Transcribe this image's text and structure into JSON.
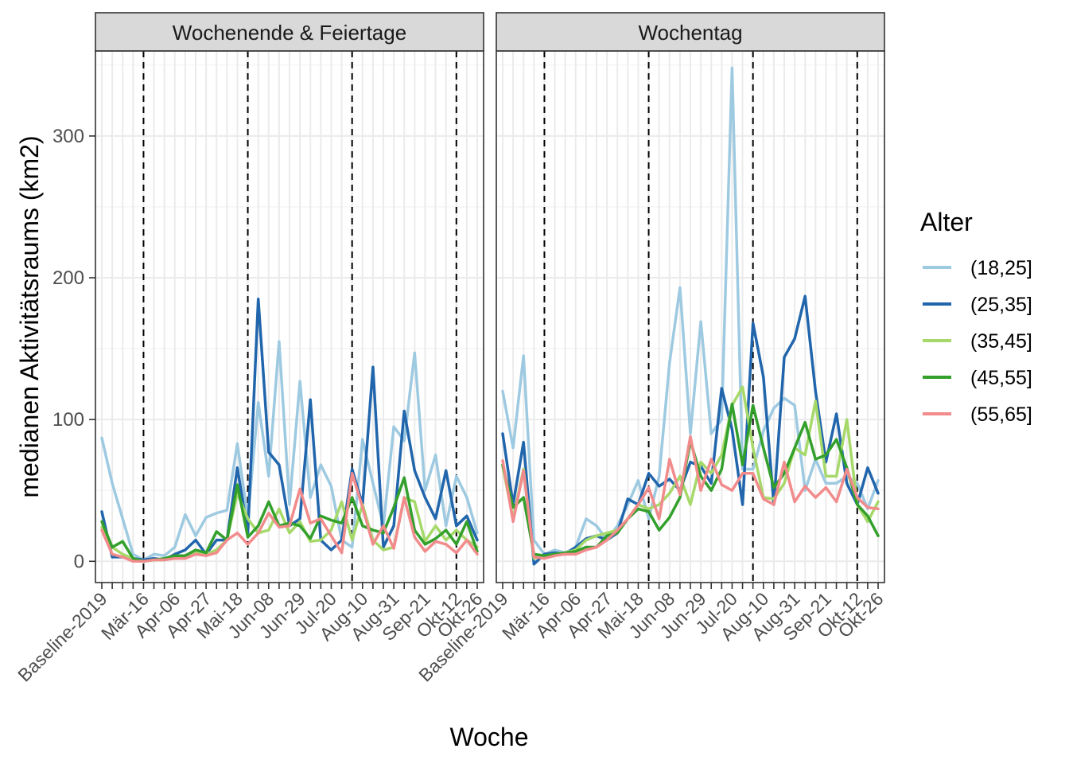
{
  "chart_data": {
    "type": "line",
    "xlabel": "Woche",
    "ylabel": "medianen Aktivitätsraums (km2)",
    "ylim": [
      -15,
      360
    ],
    "yticks": [
      0,
      100,
      200,
      300
    ],
    "grid": true,
    "legend": {
      "title": "Alter",
      "position": "right",
      "entries": [
        "(18,25]",
        "(25,35]",
        "(35,45]",
        "(45,55]",
        "(55,65]"
      ]
    },
    "x_tick_labels": [
      "Baseline-2019",
      "Mär-16",
      "Apr-06",
      "Apr-27",
      "Mai-18",
      "Jun-08",
      "Jun-29",
      "Jul-20",
      "Aug-10",
      "Aug-31",
      "Sep-21",
      "Okt-12",
      "Okt-26"
    ],
    "x_tick_index": [
      0,
      4,
      7,
      10,
      13,
      16,
      19,
      22,
      25,
      28,
      31,
      34,
      36
    ],
    "n_weeks": 37,
    "vlines_index": [
      4,
      14,
      24,
      34
    ],
    "series_colors": [
      "#9ECAE1",
      "#2166AC",
      "#A6D96A",
      "#33A02C",
      "#F28B8B"
    ],
    "panels": [
      {
        "name": "Wochenende & Feiertage",
        "series": [
          {
            "name": "(18,25]",
            "values": [
              87,
              55,
              30,
              5,
              1,
              5,
              4,
              10,
              33,
              18,
              31,
              34,
              36,
              83,
              30,
              112,
              60,
              155,
              40,
              127,
              45,
              68,
              53,
              15,
              10,
              86,
              55,
              25,
              95,
              85,
              147,
              50,
              75,
              25,
              60,
              45,
              20
            ]
          },
          {
            "name": "(25,35]",
            "values": [
              35,
              3,
              3,
              2,
              1,
              2,
              1,
              5,
              8,
              15,
              5,
              15,
              15,
              66,
              20,
              185,
              77,
              68,
              25,
              30,
              114,
              15,
              8,
              15,
              65,
              40,
              137,
              10,
              25,
              106,
              64,
              45,
              30,
              64,
              25,
              32,
              15
            ]
          },
          {
            "name": "(35,45]",
            "values": [
              24,
              10,
              5,
              2,
              0,
              1,
              1,
              3,
              3,
              6,
              5,
              8,
              15,
              48,
              30,
              20,
              22,
              37,
              20,
              28,
              14,
              15,
              22,
              42,
              15,
              40,
              15,
              8,
              10,
              45,
              42,
              14,
              25,
              15,
              22,
              15,
              10
            ]
          },
          {
            "name": "(45,55]",
            "values": [
              28,
              10,
              14,
              2,
              0,
              1,
              2,
              4,
              4,
              8,
              6,
              21,
              15,
              54,
              17,
              25,
              42,
              25,
              27,
              25,
              16,
              32,
              29,
              27,
              45,
              25,
              22,
              20,
              38,
              59,
              22,
              12,
              16,
              22,
              12,
              28,
              7
            ]
          },
          {
            "name": "(55,65]",
            "values": [
              22,
              5,
              3,
              0,
              0,
              1,
              1,
              2,
              2,
              5,
              4,
              6,
              15,
              20,
              12,
              20,
              34,
              24,
              25,
              51,
              27,
              30,
              18,
              6,
              62,
              38,
              12,
              25,
              9,
              45,
              17,
              7,
              14,
              12,
              6,
              15,
              5
            ]
          }
        ]
      },
      {
        "name": "Wochentag",
        "series": [
          {
            "name": "(18,25]",
            "values": [
              120,
              80,
              145,
              15,
              5,
              8,
              6,
              10,
              30,
              25,
              15,
              25,
              40,
              57,
              30,
              60,
              140,
              193,
              90,
              169,
              90,
              100,
              348,
              65,
              65,
              92,
              108,
              115,
              110,
              50,
              72,
              55,
              55,
              60,
              55,
              37,
              57
            ]
          },
          {
            "name": "(25,35]",
            "values": [
              90,
              40,
              84,
              -2,
              5,
              6,
              5,
              10,
              16,
              18,
              15,
              20,
              44,
              40,
              62,
              53,
              58,
              50,
              70,
              67,
              55,
              122,
              93,
              40,
              168,
              130,
              40,
              144,
              157,
              187,
              120,
              70,
              104,
              55,
              40,
              66,
              48
            ]
          },
          {
            "name": "(35,45]",
            "values": [
              67,
              30,
              65,
              2,
              4,
              5,
              6,
              8,
              15,
              18,
              20,
              22,
              30,
              40,
              37,
              40,
              48,
              60,
              40,
              70,
              62,
              75,
              110,
              123,
              80,
              45,
              44,
              55,
              80,
              75,
              113,
              60,
              60,
              100,
              40,
              28,
              42
            ]
          },
          {
            "name": "(45,55]",
            "values": [
              68,
              38,
              45,
              5,
              4,
              5,
              6,
              7,
              10,
              10,
              18,
              20,
              30,
              37,
              35,
              22,
              31,
              45,
              85,
              60,
              50,
              65,
              111,
              68,
              110,
              80,
              52,
              62,
              80,
              98,
              72,
              75,
              86,
              66,
              40,
              32,
              18
            ]
          },
          {
            "name": "(55,65]",
            "values": [
              71,
              28,
              64,
              3,
              2,
              4,
              5,
              5,
              8,
              10,
              15,
              22,
              30,
              40,
              52,
              30,
              72,
              47,
              88,
              50,
              72,
              54,
              50,
              62,
              62,
              44,
              40,
              70,
              42,
              53,
              45,
              52,
              42,
              65,
              45,
              38,
              37
            ]
          }
        ]
      }
    ]
  }
}
